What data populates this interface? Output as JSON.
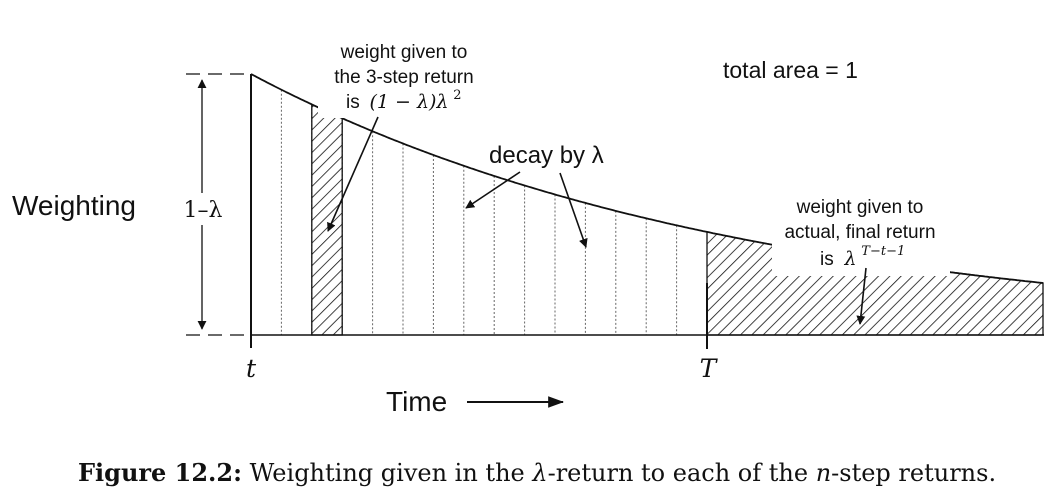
{
  "diagram": {
    "y_label": "Weighting",
    "y_height_label": "1–λ",
    "x_label": "Time",
    "t_label": "t",
    "T_label": "T",
    "total_area": "total area = 1",
    "decay_label": "decay by λ",
    "ann_3step": {
      "line1": "weight given to",
      "line2": "the 3-step return",
      "is": "is",
      "formula_main": "(1 − λ)λ",
      "formula_sup": "2"
    },
    "ann_final": {
      "line1": "weight given to",
      "line2": "actual, final return",
      "is": "is",
      "formula_main": "λ",
      "formula_sup": "T−t−1"
    }
  },
  "caption": {
    "label": "Figure 12.2:",
    "text_a": " Weighting given in the ",
    "lambda": "λ",
    "text_b": "-return to each of the ",
    "n": "n",
    "text_c": "-step returns."
  },
  "colors": {
    "ink": "#111111",
    "grid": "#555555",
    "background": "#ffffff"
  }
}
